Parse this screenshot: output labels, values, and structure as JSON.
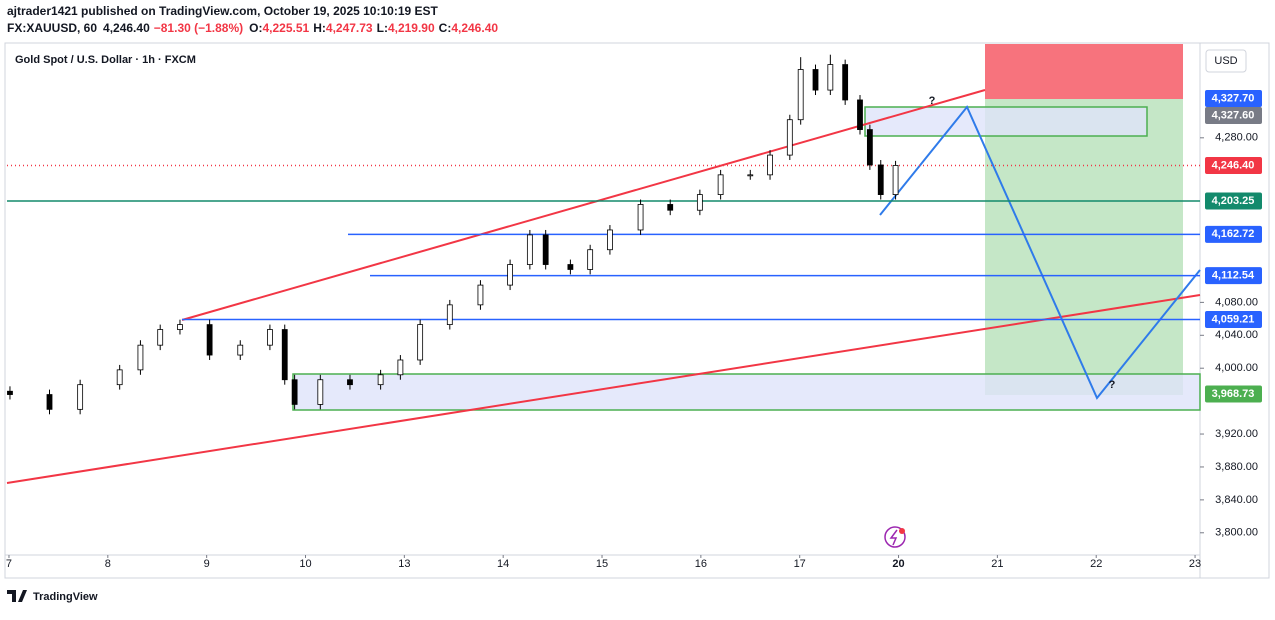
{
  "header": {
    "publisher": "ajtrader1421 published on TradingView.com, October 19, 2025 10:10:19 EST",
    "symbol": "FX:XAUUSD, 60",
    "last": "4,246.40",
    "change": "−81.30 (−1.88%)",
    "o_label": "O:",
    "open": "4,225.51",
    "h_label": "H:",
    "high": "4,247.73",
    "l_label": "L:",
    "low": "4,219.90",
    "c_label": "C:",
    "close": "4,246.40"
  },
  "footer": {
    "brand": "TradingView"
  },
  "chart_data": {
    "type": "candlestick",
    "title": "Gold Spot / U.S. Dollar · 1h · FXCM",
    "currency": "USD",
    "up_color": "#ffffff",
    "down_color": "#000000",
    "x": [
      0.01,
      0.41,
      0.72,
      1.12,
      1.33,
      1.53,
      1.73,
      2.03,
      2.34,
      2.64,
      2.79,
      2.89,
      3.15,
      3.45,
      3.76,
      3.96,
      4.16,
      4.46,
      4.77,
      5.07,
      5.27,
      5.43,
      5.68,
      5.88,
      6.08,
      6.39,
      6.69,
      6.99,
      7.2,
      7.5,
      7.7,
      7.9,
      8.01,
      8.16,
      8.31,
      8.46,
      8.61,
      8.71,
      8.82,
      8.97
    ],
    "open": [
      3972,
      3968,
      3950,
      3980,
      3998,
      4028,
      4047,
      4053,
      4016,
      4028,
      4047,
      3986,
      3956,
      3986,
      3980,
      3992,
      4010,
      4053,
      4077,
      4101,
      4126,
      4162,
      4126,
      4120,
      4144,
      4168,
      4199,
      4192,
      4211,
      4235,
      4235,
      4259,
      4302,
      4363,
      4338,
      4369,
      4326,
      4290,
      4247,
      4211
    ],
    "high": [
      3978,
      3974,
      3986,
      4004,
      4034,
      4053,
      4059,
      4059,
      4034,
      4053,
      4053,
      3992,
      3992,
      3992,
      3998,
      4016,
      4059,
      4083,
      4107,
      4132,
      4168,
      4168,
      4132,
      4150,
      4174,
      4205,
      4205,
      4217,
      4241,
      4241,
      4265,
      4308,
      4378,
      4369,
      4381,
      4375,
      4332,
      4296,
      4253,
      4252
    ],
    "low": [
      3962,
      3944,
      3944,
      3974,
      3992,
      4022,
      4041,
      4010,
      4010,
      4022,
      3980,
      3950,
      3950,
      3974,
      3974,
      3986,
      4004,
      4047,
      4071,
      4095,
      4120,
      4120,
      4114,
      4114,
      4138,
      4162,
      4186,
      4186,
      4205,
      4229,
      4229,
      4253,
      4296,
      4332,
      4332,
      4320,
      4284,
      4241,
      4205,
      4205
    ],
    "close": [
      3968,
      3950,
      3980,
      3998,
      4028,
      4047,
      4053,
      4016,
      4028,
      4047,
      3986,
      3956,
      3986,
      3980,
      3992,
      4010,
      4053,
      4077,
      4101,
      4126,
      4162,
      4126,
      4120,
      4144,
      4168,
      4199,
      4192,
      4211,
      4235,
      4235,
      4259,
      4302,
      4363,
      4338,
      4369,
      4326,
      4290,
      4247,
      4211,
      4246.4
    ],
    "xlim": [
      -0.02,
      12.05
    ],
    "xticks": [
      {
        "value": 0,
        "label": "7"
      },
      {
        "value": 1,
        "label": "8"
      },
      {
        "value": 2,
        "label": "9"
      },
      {
        "value": 3,
        "label": "10"
      },
      {
        "value": 4,
        "label": "13"
      },
      {
        "value": 5,
        "label": "14"
      },
      {
        "value": 6,
        "label": "15"
      },
      {
        "value": 7,
        "label": "16"
      },
      {
        "value": 8,
        "label": "17"
      },
      {
        "value": 9,
        "label": "20"
      },
      {
        "value": 10,
        "label": "21"
      },
      {
        "value": 11,
        "label": "22"
      },
      {
        "value": 12,
        "label": "23"
      }
    ],
    "ylim": [
      3773,
      4394
    ],
    "yticks": [
      {
        "value": 3800,
        "label": "3,800.00"
      },
      {
        "value": 3840,
        "label": "3,840.00"
      },
      {
        "value": 3880,
        "label": "3,880.00"
      },
      {
        "value": 3920,
        "label": "3,920.00"
      },
      {
        "value": 4000,
        "label": "4,000.00"
      },
      {
        "value": 4040,
        "label": "4,040.00"
      },
      {
        "value": 4080,
        "label": "4,080.00"
      },
      {
        "value": 4280,
        "label": "4,280.00"
      }
    ],
    "price_labels": [
      {
        "value": 4327.7,
        "label": "4,327.70",
        "color": "#2962ff"
      },
      {
        "value": 4327.6,
        "label": "4,327.60",
        "color": "#787b86"
      },
      {
        "value": 4246.4,
        "label": "4,246.40",
        "color": "#f23645"
      },
      {
        "value": 4203.25,
        "label": "4,203.25",
        "color": "#138a6c"
      },
      {
        "value": 4162.72,
        "label": "4,162.72",
        "color": "#2962ff"
      },
      {
        "value": 4112.54,
        "label": "4,112.54",
        "color": "#2962ff"
      },
      {
        "value": 4059.21,
        "label": "4,059.21",
        "color": "#2962ff"
      },
      {
        "value": 3968.73,
        "label": "3,968.73",
        "color": "#4caf50"
      }
    ]
  }
}
